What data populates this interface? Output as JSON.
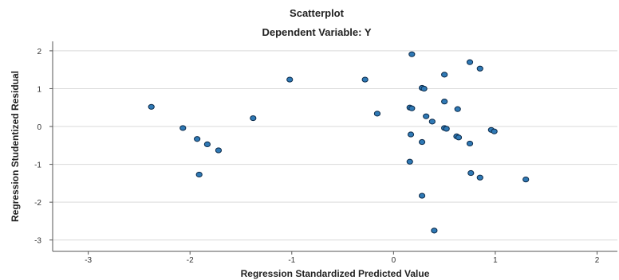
{
  "chart_data": {
    "type": "scatter",
    "title": "Scatterplot",
    "subtitle": "Dependent Variable: Y",
    "xlabel": "Regression Standardized Predicted Value",
    "ylabel": "Regression Studentized Residual",
    "xlim": [
      -3.35,
      2.2
    ],
    "ylim": [
      -3.3,
      2.25
    ],
    "xticks": [
      -3,
      -2,
      -1,
      0,
      1,
      2
    ],
    "yticks": [
      -3,
      -2,
      -1,
      0,
      1,
      2
    ],
    "grid": "horizontal",
    "marker_color": "#2f79b5",
    "marker_edge_color": "#0b2a4a",
    "points": [
      {
        "x": -2.38,
        "y": 0.52
      },
      {
        "x": -2.07,
        "y": -0.04
      },
      {
        "x": -1.93,
        "y": -0.33
      },
      {
        "x": -1.83,
        "y": -0.47
      },
      {
        "x": -1.72,
        "y": -0.63
      },
      {
        "x": -1.91,
        "y": -1.27
      },
      {
        "x": -1.38,
        "y": 0.22
      },
      {
        "x": -1.02,
        "y": 1.24
      },
      {
        "x": -0.28,
        "y": 1.24
      },
      {
        "x": -0.16,
        "y": 0.34
      },
      {
        "x": 0.18,
        "y": 1.91
      },
      {
        "x": 0.16,
        "y": 0.5
      },
      {
        "x": 0.18,
        "y": 0.48
      },
      {
        "x": 0.17,
        "y": -0.21
      },
      {
        "x": 0.16,
        "y": -0.93
      },
      {
        "x": 0.28,
        "y": 1.02
      },
      {
        "x": 0.3,
        "y": 1.0
      },
      {
        "x": 0.32,
        "y": 0.27
      },
      {
        "x": 0.38,
        "y": 0.13
      },
      {
        "x": 0.28,
        "y": -0.41
      },
      {
        "x": 0.28,
        "y": -1.83
      },
      {
        "x": 0.4,
        "y": -2.75
      },
      {
        "x": 0.5,
        "y": 1.37
      },
      {
        "x": 0.5,
        "y": 0.66
      },
      {
        "x": 0.5,
        "y": -0.04
      },
      {
        "x": 0.52,
        "y": -0.06
      },
      {
        "x": 0.62,
        "y": -0.26
      },
      {
        "x": 0.64,
        "y": -0.29
      },
      {
        "x": 0.63,
        "y": 0.46
      },
      {
        "x": 0.75,
        "y": 1.7
      },
      {
        "x": 0.75,
        "y": -0.45
      },
      {
        "x": 0.76,
        "y": -1.23
      },
      {
        "x": 0.85,
        "y": 1.53
      },
      {
        "x": 0.85,
        "y": -1.35
      },
      {
        "x": 0.96,
        "y": -0.09
      },
      {
        "x": 0.99,
        "y": -0.13
      },
      {
        "x": 1.3,
        "y": -1.4
      }
    ]
  }
}
